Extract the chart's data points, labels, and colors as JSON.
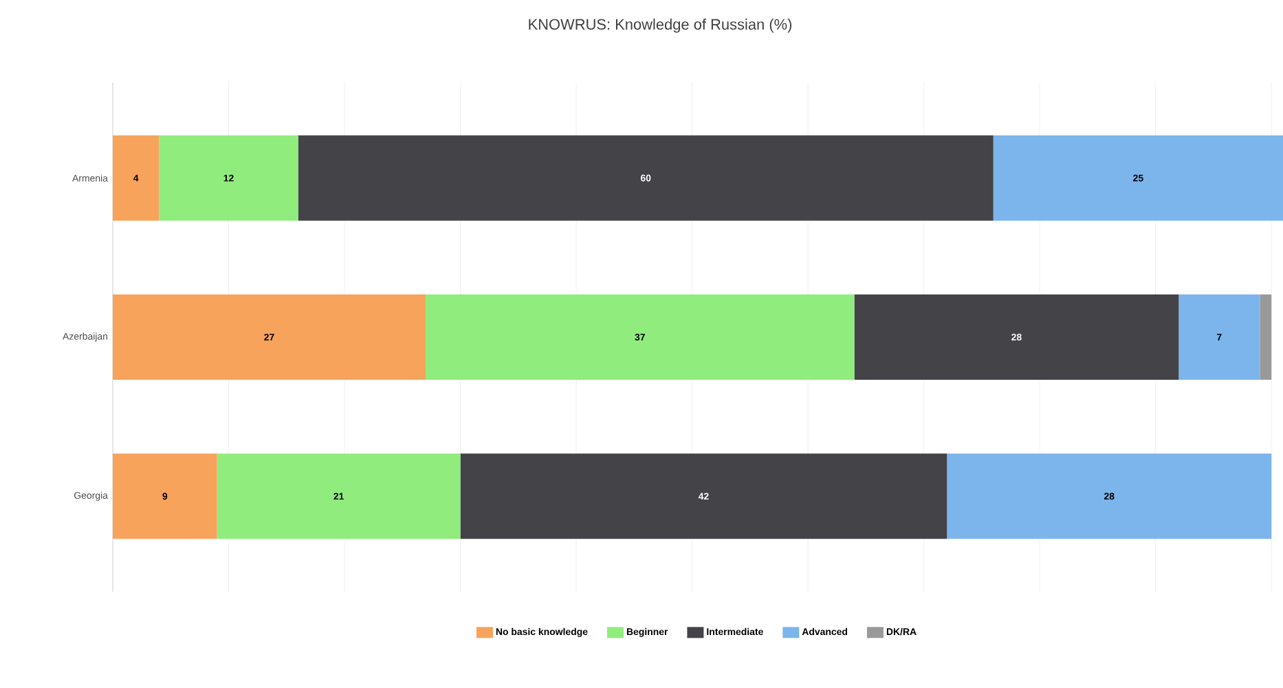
{
  "chart_data": {
    "type": "bar",
    "orientation": "horizontal",
    "stacked": true,
    "title": "KNOWRUS: Knowledge of Russian (%)",
    "categories": [
      "Armenia",
      "Azerbaijan",
      "Georgia"
    ],
    "series": [
      {
        "name": "No basic knowledge",
        "color": "#f7a35c",
        "values": [
          4,
          27,
          9
        ],
        "value_labels": [
          "4",
          "27",
          "9"
        ]
      },
      {
        "name": "Beginner",
        "color": "#90ed7d",
        "values": [
          12,
          37,
          21
        ],
        "value_labels": [
          "12",
          "37",
          "21"
        ]
      },
      {
        "name": "Intermediate",
        "color": "#434348",
        "values": [
          60,
          28,
          42
        ],
        "value_labels": [
          "60",
          "28",
          "42"
        ]
      },
      {
        "name": "Advanced",
        "color": "#7cb5ec",
        "values": [
          25,
          7,
          28
        ],
        "value_labels": [
          "25",
          "7",
          "28"
        ]
      },
      {
        "name": "DK/RA",
        "color": "#999999",
        "values": [
          null,
          1,
          null
        ],
        "value_labels": [
          null,
          null,
          null
        ]
      }
    ],
    "xlim": [
      0,
      101
    ],
    "xticks": [
      {
        "value": 0,
        "label": null
      },
      {
        "value": 10,
        "label": null
      },
      {
        "value": 20,
        "label": null
      },
      {
        "value": 30,
        "label": null
      },
      {
        "value": 40,
        "label": null
      },
      {
        "value": 50,
        "label": null
      },
      {
        "value": 60,
        "label": null
      },
      {
        "value": 70,
        "label": null
      },
      {
        "value": 80,
        "label": null
      },
      {
        "value": 90,
        "label": null
      },
      {
        "value": 100,
        "label": null
      }
    ],
    "tick_labels": "y",
    "grid": "x",
    "legend": "bottom"
  }
}
